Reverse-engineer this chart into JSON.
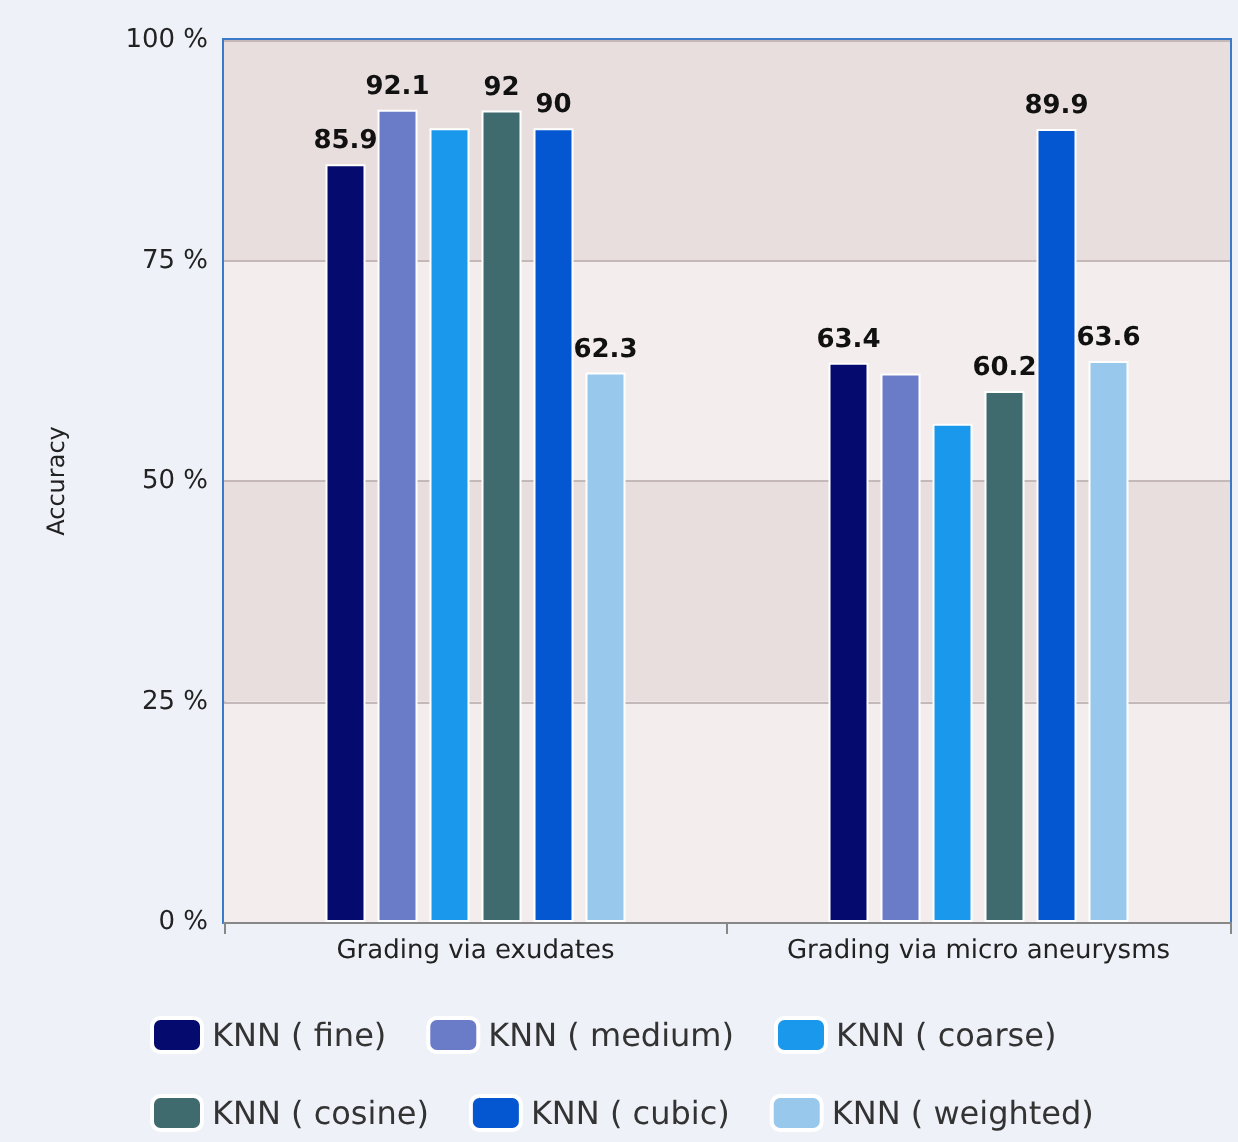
{
  "chart_data": {
    "type": "bar",
    "ylabel": "Accuracy",
    "categories": [
      "Grading via exudates",
      "Grading via micro aneurysms"
    ],
    "series": [
      {
        "name": "KNN ( fine)",
        "color": "#050a6e",
        "values": [
          85.9,
          63.4
        ],
        "value_labels": [
          "85.9",
          "63.4"
        ]
      },
      {
        "name": "KNN ( medium)",
        "color": "#6a7bc8",
        "values": [
          92.1,
          62.2
        ],
        "value_labels": [
          "92.1",
          null
        ]
      },
      {
        "name": "KNN ( coarse)",
        "color": "#1a98ec",
        "values": [
          90.0,
          56.5
        ],
        "value_labels": [
          null,
          null
        ]
      },
      {
        "name": "KNN ( cosine)",
        "color": "#3f6b6e",
        "values": [
          92,
          60.2
        ],
        "value_labels": [
          "92",
          "60.2"
        ]
      },
      {
        "name": "KNN ( cubic)",
        "color": "#0457d0",
        "values": [
          90,
          89.9
        ],
        "value_labels": [
          "90",
          "89.9"
        ]
      },
      {
        "name": "KNN ( weighted)",
        "color": "#98c8ec",
        "values": [
          62.3,
          63.6
        ],
        "value_labels": [
          "62.3",
          "63.6"
        ]
      }
    ],
    "ylim": [
      0,
      100
    ],
    "yticks": [
      {
        "value": 0,
        "label": "0 %"
      },
      {
        "value": 25,
        "label": "25 %"
      },
      {
        "value": 50,
        "label": "50 %"
      },
      {
        "value": 75,
        "label": "75 %"
      },
      {
        "value": 100,
        "label": "100 %"
      }
    ],
    "grid": "y",
    "legend": "bottom"
  }
}
